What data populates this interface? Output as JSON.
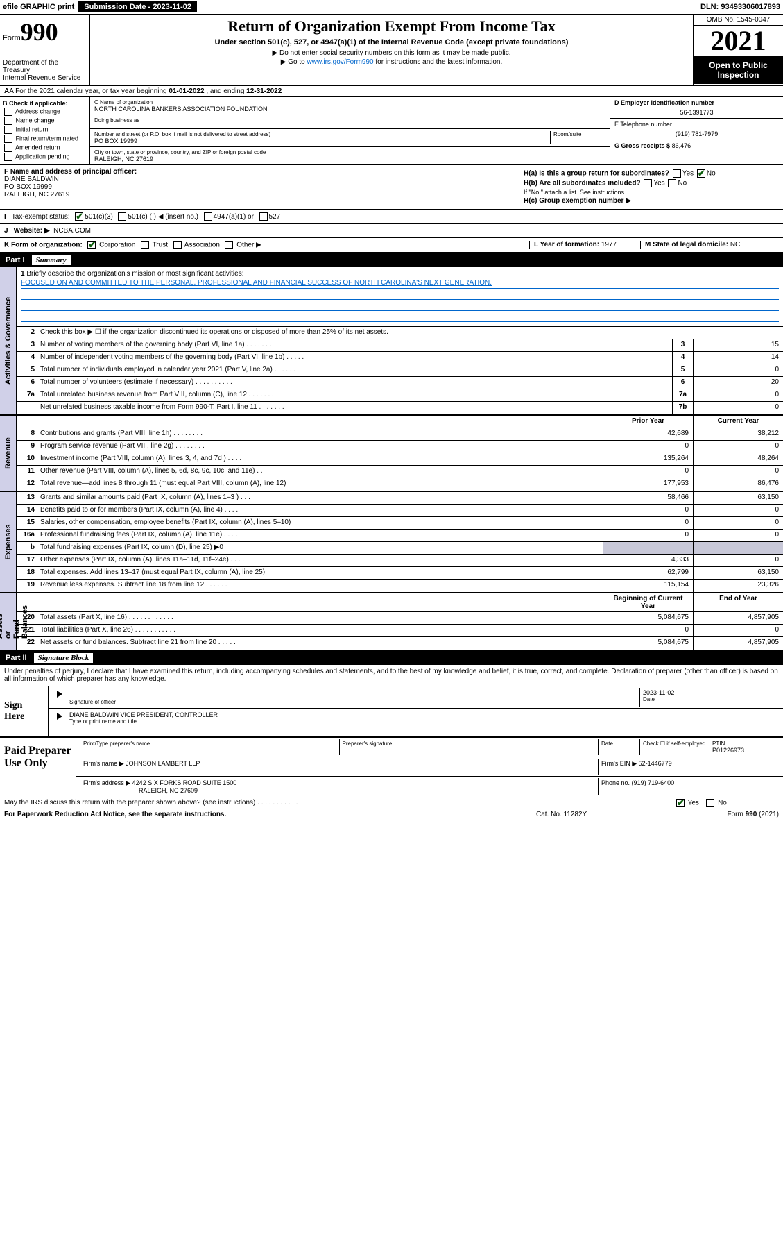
{
  "topbar": {
    "efile": "efile GRAPHIC print",
    "submission": "Submission Date - 2023-11-02",
    "dln": "DLN: 93493306017893"
  },
  "header": {
    "form_label": "Form",
    "form_no": "990",
    "title": "Return of Organization Exempt From Income Tax",
    "subtitle": "Under section 501(c), 527, or 4947(a)(1) of the Internal Revenue Code (except private foundations)",
    "note1": "▶ Do not enter social security numbers on this form as it may be made public.",
    "note2_pre": "▶ Go to ",
    "note2_link": "www.irs.gov/Form990",
    "note2_post": " for instructions and the latest information.",
    "dept": "Department of the Treasury\nInternal Revenue Service",
    "omb": "OMB No. 1545-0047",
    "year": "2021",
    "open": "Open to Public Inspection"
  },
  "lineA": {
    "text_pre": "A For the 2021 calendar year, or tax year beginning ",
    "begin": "01-01-2022",
    "mid": " , and ending ",
    "end": "12-31-2022"
  },
  "colB": {
    "header": "B Check if applicable:",
    "opts": [
      "Address change",
      "Name change",
      "Initial return",
      "Final return/terminated",
      "Amended return",
      "Application pending"
    ]
  },
  "colC": {
    "name_label": "C Name of organization",
    "name": "NORTH CAROLINA BANKERS ASSOCIATION FOUNDATION",
    "dba_label": "Doing business as",
    "dba": "",
    "addr_label": "Number and street (or P.O. box if mail is not delivered to street address)",
    "room_label": "Room/suite",
    "addr": "PO BOX 19999",
    "city_label": "City or town, state or province, country, and ZIP or foreign postal code",
    "city": "RALEIGH, NC  27619"
  },
  "colD": {
    "ein_label": "D Employer identification number",
    "ein": "56-1391773",
    "tel_label": "E Telephone number",
    "tel": "(919) 781-7979",
    "gross_label": "G Gross receipts $",
    "gross": "86,476"
  },
  "rowF": {
    "label": "F Name and address of principal officer:",
    "name": "DIANE BALDWIN",
    "addr1": "PO BOX 19999",
    "addr2": "RALEIGH, NC  27619",
    "ha": "H(a) Is this a group return for subordinates?",
    "ha_yes": "Yes",
    "ha_no": "No",
    "hb": "H(b) Are all subordinates included?",
    "hb_yes": "Yes",
    "hb_no": "No",
    "hb_note": "If \"No,\" attach a list. See instructions.",
    "hc": "H(c) Group exemption number ▶"
  },
  "rowI": {
    "label": "I",
    "text": "Tax-exempt status:",
    "opt1": "501(c)(3)",
    "opt2": "501(c) (   ) ◀ (insert no.)",
    "opt3": "4947(a)(1) or",
    "opt4": "527"
  },
  "rowJ": {
    "label": "J",
    "text": "Website: ▶",
    "val": "NCBA.COM"
  },
  "rowK": {
    "label": "K Form of organization:",
    "opt1": "Corporation",
    "opt2": "Trust",
    "opt3": "Association",
    "opt4": "Other ▶",
    "l_label": "L Year of formation:",
    "l_val": "1977",
    "m_label": "M State of legal domicile:",
    "m_val": "NC"
  },
  "part1": {
    "label": "Part I",
    "title": "Summary"
  },
  "summary": {
    "q1": "Briefly describe the organization's mission or most significant activities:",
    "mission": "FOCUSED ON AND COMMITTED TO THE PERSONAL, PROFESSIONAL AND FINANCIAL SUCCESS OF NORTH CAROLINA'S NEXT GENERATION.",
    "q2": "Check this box ▶ ☐ if the organization discontinued its operations or disposed of more than 25% of its net assets.",
    "rows_gov": [
      {
        "n": "3",
        "d": "Number of voting members of the governing body (Part VI, line 1a)  .   .   .   .   .   .   .",
        "b": "3",
        "v": "15"
      },
      {
        "n": "4",
        "d": "Number of independent voting members of the governing body (Part VI, line 1b)  .   .   .   .   .",
        "b": "4",
        "v": "14"
      },
      {
        "n": "5",
        "d": "Total number of individuals employed in calendar year 2021 (Part V, line 2a)  .   .   .   .   .   .",
        "b": "5",
        "v": "0"
      },
      {
        "n": "6",
        "d": "Total number of volunteers (estimate if necessary)  .   .   .   .   .   .   .   .   .   .",
        "b": "6",
        "v": "20"
      },
      {
        "n": "7a",
        "d": "Total unrelated business revenue from Part VIII, column (C), line 12  .   .   .   .   .   .   .",
        "b": "7a",
        "v": "0"
      },
      {
        "n": "",
        "d": "Net unrelated business taxable income from Form 990-T, Part I, line 11  .   .   .   .   .   .   .",
        "b": "7b",
        "v": "0"
      }
    ],
    "col_prior": "Prior Year",
    "col_current": "Current Year",
    "rows_rev": [
      {
        "n": "8",
        "d": "Contributions and grants (Part VIII, line 1h)  .   .   .   .   .   .   .   .",
        "p": "42,689",
        "c": "38,212"
      },
      {
        "n": "9",
        "d": "Program service revenue (Part VIII, line 2g)  .   .   .   .   .   .   .   .",
        "p": "0",
        "c": "0"
      },
      {
        "n": "10",
        "d": "Investment income (Part VIII, column (A), lines 3, 4, and 7d )  .   .   .   .",
        "p": "135,264",
        "c": "48,264"
      },
      {
        "n": "11",
        "d": "Other revenue (Part VIII, column (A), lines 5, 6d, 8c, 9c, 10c, and 11e)  .   .",
        "p": "0",
        "c": "0"
      },
      {
        "n": "12",
        "d": "Total revenue—add lines 8 through 11 (must equal Part VIII, column (A), line 12)",
        "p": "177,953",
        "c": "86,476"
      }
    ],
    "rows_exp": [
      {
        "n": "13",
        "d": "Grants and similar amounts paid (Part IX, column (A), lines 1–3 )  .   .   .",
        "p": "58,466",
        "c": "63,150"
      },
      {
        "n": "14",
        "d": "Benefits paid to or for members (Part IX, column (A), line 4)  .   .   .   .",
        "p": "0",
        "c": "0"
      },
      {
        "n": "15",
        "d": "Salaries, other compensation, employee benefits (Part IX, column (A), lines 5–10)",
        "p": "0",
        "c": "0"
      },
      {
        "n": "16a",
        "d": "Professional fundraising fees (Part IX, column (A), line 11e)  .   .   .   .",
        "p": "0",
        "c": "0"
      },
      {
        "n": "b",
        "d": "Total fundraising expenses (Part IX, column (D), line 25) ▶0",
        "p": "",
        "c": "",
        "shaded": true
      },
      {
        "n": "17",
        "d": "Other expenses (Part IX, column (A), lines 11a–11d, 11f–24e)  .   .   .   .",
        "p": "4,333",
        "c": "0"
      },
      {
        "n": "18",
        "d": "Total expenses. Add lines 13–17 (must equal Part IX, column (A), line 25)",
        "p": "62,799",
        "c": "63,150"
      },
      {
        "n": "19",
        "d": "Revenue less expenses. Subtract line 18 from line 12  .   .   .   .   .   .",
        "p": "115,154",
        "c": "23,326"
      }
    ],
    "col_begin": "Beginning of Current Year",
    "col_end": "End of Year",
    "rows_net": [
      {
        "n": "20",
        "d": "Total assets (Part X, line 16)  .   .   .   .   .   .   .   .   .   .   .   .",
        "p": "5,084,675",
        "c": "4,857,905"
      },
      {
        "n": "21",
        "d": "Total liabilities (Part X, line 26)  .   .   .   .   .   .   .   .   .   .   .",
        "p": "0",
        "c": "0"
      },
      {
        "n": "22",
        "d": "Net assets or fund balances. Subtract line 21 from line 20  .   .   .   .   .",
        "p": "5,084,675",
        "c": "4,857,905"
      }
    ]
  },
  "sidelabels": {
    "gov": "Activities & Governance",
    "rev": "Revenue",
    "exp": "Expenses",
    "net": "Net Assets or\nFund Balances"
  },
  "part2": {
    "label": "Part II",
    "title": "Signature Block"
  },
  "sig": {
    "intro": "Under penalties of perjury, I declare that I have examined this return, including accompanying schedules and statements, and to the best of my knowledge and belief, it is true, correct, and complete. Declaration of preparer (other than officer) is based on all information of which preparer has any knowledge.",
    "sign_here": "Sign Here",
    "sig_officer": "Signature of officer",
    "date_label": "Date",
    "date": "2023-11-02",
    "officer_name": "DIANE BALDWIN VICE PRESIDENT, CONTROLLER",
    "type_name": "Type or print name and title"
  },
  "prep": {
    "label": "Paid Preparer Use Only",
    "print_name": "Print/Type preparer's name",
    "prep_sig": "Preparer's signature",
    "date": "Date",
    "check": "Check ☐ if self-employed",
    "ptin_label": "PTIN",
    "ptin": "P01226973",
    "firm_name_label": "Firm's name   ▶",
    "firm_name": "JOHNSON LAMBERT LLP",
    "firm_ein_label": "Firm's EIN ▶",
    "firm_ein": "52-1446779",
    "firm_addr_label": "Firm's address ▶",
    "firm_addr": "4242 SIX FORKS ROAD SUITE 1500",
    "firm_city": "RALEIGH, NC  27609",
    "phone_label": "Phone no.",
    "phone": "(919) 719-6400"
  },
  "footer": {
    "discuss": "May the IRS discuss this return with the preparer shown above? (see instructions)  .   .   .   .   .   .   .   .   .   .   .",
    "yes": "Yes",
    "no": "No",
    "paperwork": "For Paperwork Reduction Act Notice, see the separate instructions.",
    "cat": "Cat. No. 11282Y",
    "form": "Form 990 (2021)"
  },
  "colors": {
    "side_bg": "#d0d0e8",
    "link": "#0066cc",
    "check": "#0a5c0a"
  }
}
